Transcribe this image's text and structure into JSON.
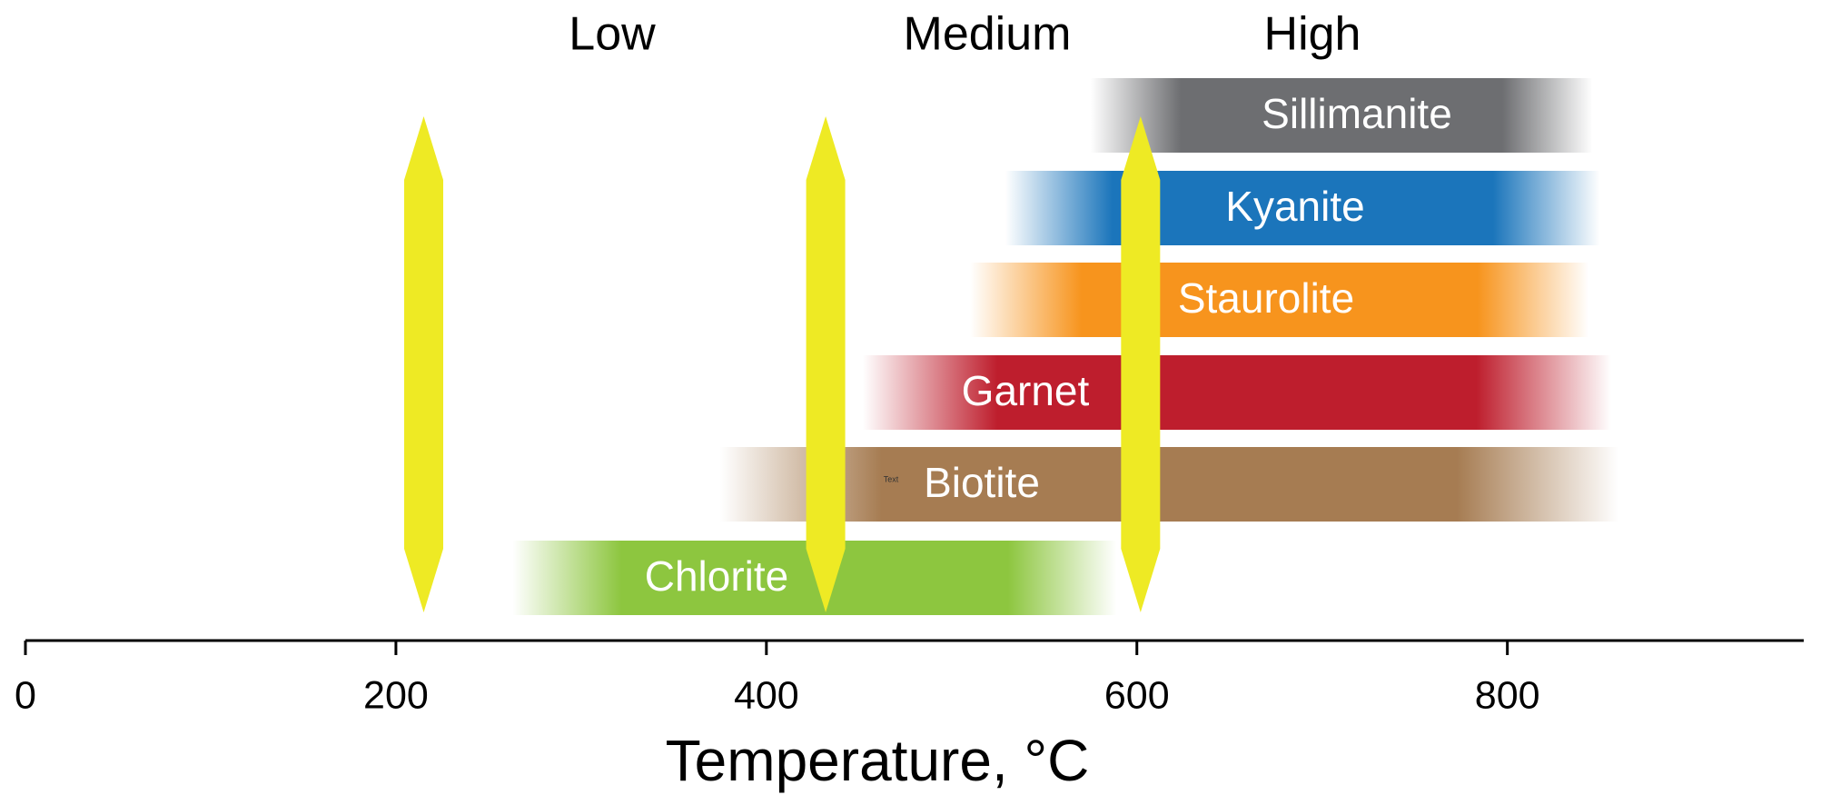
{
  "chart_data": {
    "type": "range-bar",
    "xlabel": "Temperature, °C",
    "xlim": [
      0,
      960
    ],
    "xticks": [
      0,
      200,
      400,
      600,
      800
    ],
    "zones": [
      "Low",
      "Medium",
      "High"
    ],
    "categories": [
      "Sillimanite",
      "Kyanite",
      "Staurolite",
      "Garnet",
      "Biotite",
      "Chlorite"
    ],
    "starts": [
      575,
      529,
      510,
      452,
      375,
      263
    ],
    "ends": [
      846,
      850,
      844,
      856,
      860,
      589
    ],
    "colors": [
      "#6d6e71",
      "#1b75bb",
      "#f7941d",
      "#be1e2d",
      "#a67c52",
      "#8dc63f"
    ],
    "markers": [
      215,
      432,
      602
    ],
    "marker_color": "#eeea24",
    "annotation": "Text"
  }
}
